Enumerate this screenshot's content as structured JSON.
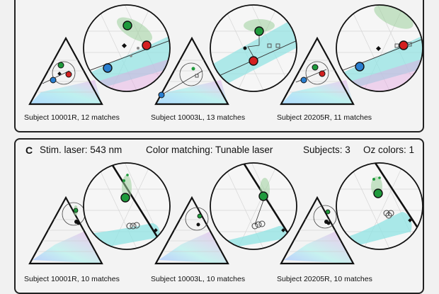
{
  "panels": {
    "b": {
      "captions": [
        "Subject 10001R, 12 matches",
        "Subject 10003L, 13 matches",
        "Subject 20205R, 11 matches"
      ]
    },
    "c": {
      "letter": "C",
      "laser": "Stim. laser: 543 nm",
      "matching": "Color matching: Tunable laser",
      "subjects": "Subjects: 3",
      "oz": "Oz colors: 1",
      "captions": [
        "Subject 10001R, 10 matches",
        "Subject 10003L, 10 matches",
        "Subject 20205R, 10 matches"
      ]
    }
  },
  "colors": {
    "match_green": "#1f9a3c",
    "reference_red": "#d42020",
    "reference_blue": "#2a7fd0",
    "cyan_band": "#8fe3e3",
    "magenta_band": "#e2a6e0"
  }
}
